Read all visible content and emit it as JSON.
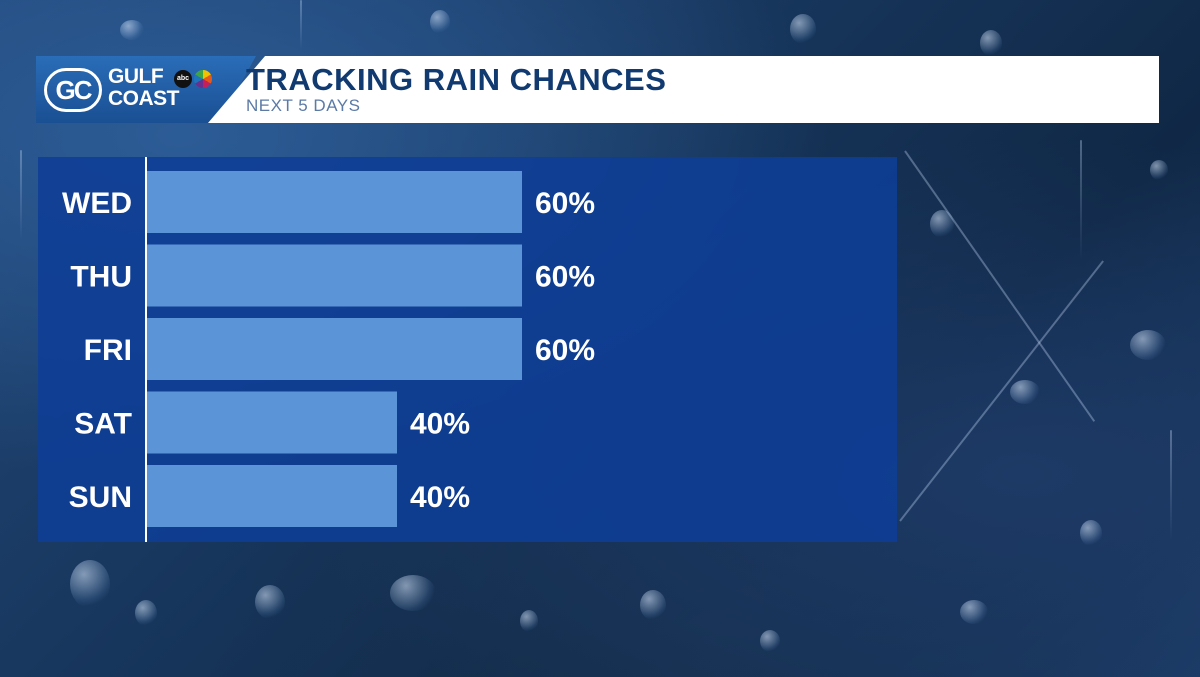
{
  "header": {
    "logo_monogram": "GC",
    "logo_line1": "GULF",
    "logo_line2": "COAST",
    "logo_network": "abc",
    "title": "TRACKING RAIN CHANCES",
    "subtitle": "NEXT 5 DAYS"
  },
  "colors": {
    "bar": "#5b95d8",
    "panel": "#0e3e96",
    "label": "#ffffff",
    "axis": "#ffffff",
    "title": "#103a70"
  },
  "chart_data": {
    "type": "bar",
    "orientation": "horizontal",
    "categories": [
      "WED",
      "THU",
      "FRI",
      "SAT",
      "SUN"
    ],
    "values": [
      60,
      60,
      60,
      40,
      40
    ],
    "value_labels": [
      "60%",
      "60%",
      "60%",
      "40%",
      "40%"
    ],
    "unit": "%",
    "xlim": [
      0,
      100
    ],
    "grid": false,
    "legend": "none"
  }
}
